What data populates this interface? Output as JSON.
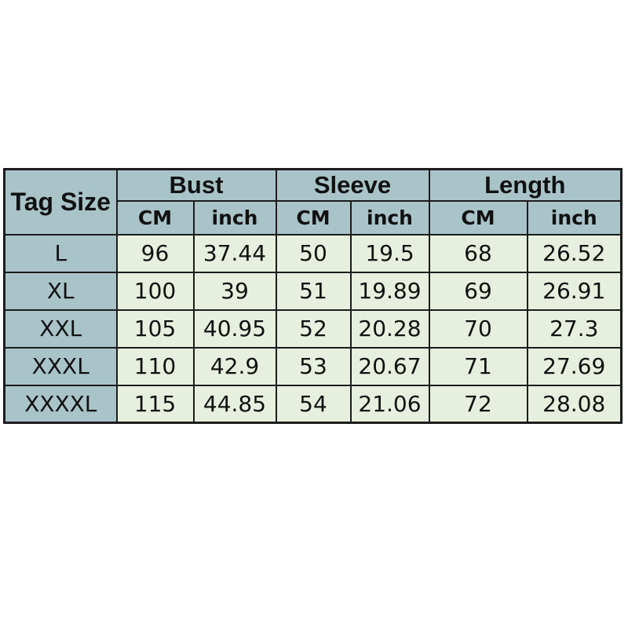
{
  "page": {
    "background": "#ffffff"
  },
  "chart_data": {
    "type": "table",
    "column_groups": [
      "Bust",
      "Sleeve",
      "Length"
    ],
    "sub_headers": [
      "CM",
      "inch",
      "CM",
      "inch",
      "CM",
      "inch"
    ],
    "columns": [
      "Tag Size",
      "Bust CM",
      "Bust inch",
      "Sleeve CM",
      "Sleeve inch",
      "Length CM",
      "Length inch"
    ],
    "rows": [
      [
        "L",
        96,
        37.44,
        50,
        19.5,
        68,
        26.52
      ],
      [
        "XL",
        100,
        39,
        51,
        19.89,
        69,
        26.91
      ],
      [
        "XXL",
        105,
        40.95,
        52,
        20.28,
        70,
        27.3
      ],
      [
        "XXXL",
        110,
        42.9,
        53,
        20.67,
        71,
        27.69
      ],
      [
        "XXXXL",
        115,
        44.85,
        54,
        21.06,
        72,
        28.08
      ]
    ],
    "colors": {
      "header_bg": "#a9c4c9",
      "cell_bg": "#e7f0de",
      "border": "#1c1c1c",
      "text": "#111111",
      "page_bg": "#ffffff"
    }
  }
}
